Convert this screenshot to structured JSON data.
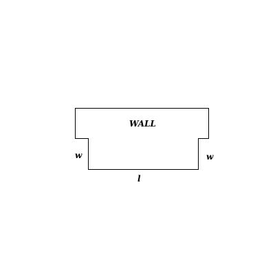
{
  "diagram": {
    "wall_label": "WALL",
    "side_left_label": "w",
    "side_right_label": "w",
    "length_label": "l"
  }
}
